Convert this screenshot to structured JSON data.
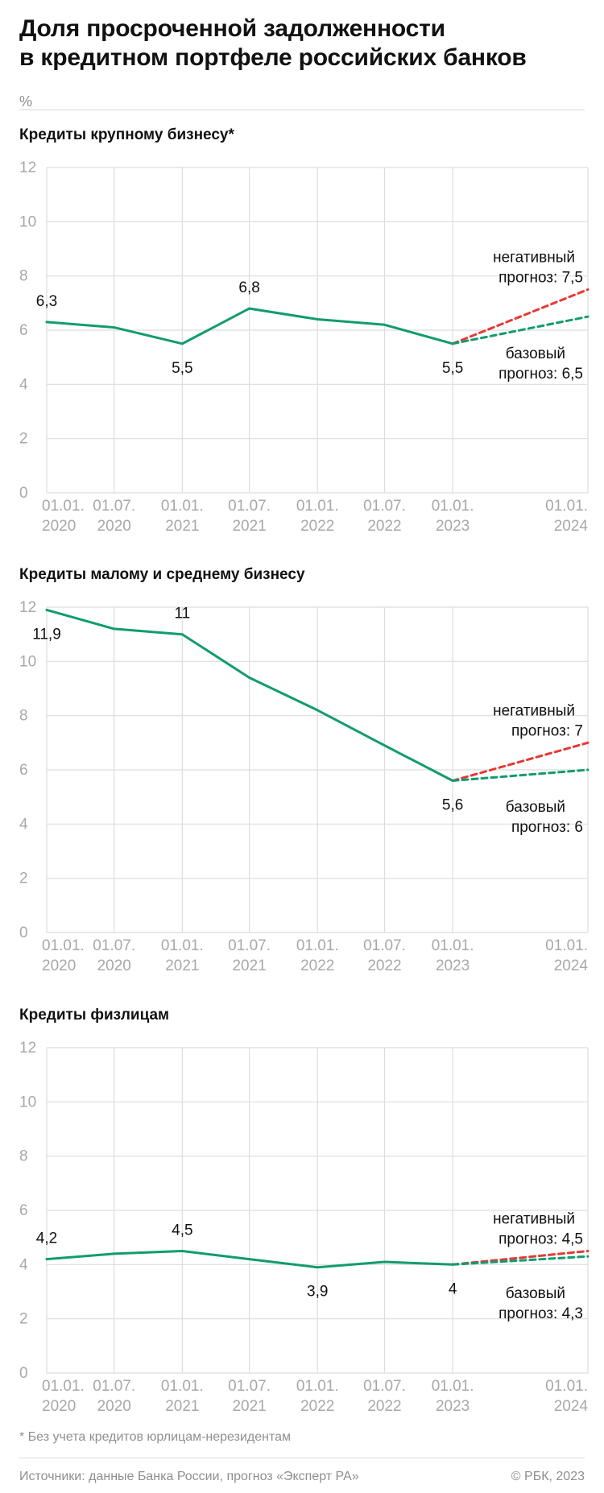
{
  "header": {
    "title_line1": "Доля просроченной задолженности",
    "title_line2": "в кредитном портфеле российских банков",
    "unit": "%"
  },
  "colors": {
    "actual": "#119c6e",
    "baseline": "#119c6e",
    "negative": "#e53935",
    "grid": "#dddddd",
    "axis_text": "#a8a8a8",
    "label": "#111111"
  },
  "chart_data": [
    {
      "type": "line",
      "title": "Кредиты крупному бизнесу*",
      "ylim": [
        0,
        12
      ],
      "yticks": [
        0,
        2,
        4,
        6,
        8,
        10,
        12
      ],
      "x_ticks": [
        {
          "date": "2020-01-01",
          "label_line1": "01.01.",
          "label_line2": "2020"
        },
        {
          "date": "2020-07-01",
          "label_line1": "01.07.",
          "label_line2": "2020"
        },
        {
          "date": "2021-01-01",
          "label_line1": "01.01.",
          "label_line2": "2021"
        },
        {
          "date": "2021-07-01",
          "label_line1": "01.07.",
          "label_line2": "2021"
        },
        {
          "date": "2022-01-01",
          "label_line1": "01.01.",
          "label_line2": "2022"
        },
        {
          "date": "2022-07-01",
          "label_line1": "01.07.",
          "label_line2": "2022"
        },
        {
          "date": "2023-01-01",
          "label_line1": "01.01.",
          "label_line2": "2023"
        },
        {
          "date": "2024-01-01",
          "label_line1": "01.01.",
          "label_line2": "2024"
        }
      ],
      "grid": true,
      "series": [
        {
          "role": "actual",
          "style": "solid",
          "x": [
            "2020-01-01",
            "2020-07-01",
            "2021-01-01",
            "2021-07-01",
            "2022-01-01",
            "2022-07-01",
            "2023-01-01"
          ],
          "values": [
            6.3,
            6.1,
            5.5,
            6.8,
            6.4,
            6.2,
            5.5
          ]
        },
        {
          "role": "negative",
          "style": "dashed",
          "x": [
            "2023-01-01",
            "2024-01-01"
          ],
          "values": [
            5.5,
            7.5
          ]
        },
        {
          "role": "baseline",
          "style": "dashed",
          "x": [
            "2023-01-01",
            "2024-01-01"
          ],
          "values": [
            5.5,
            6.5
          ]
        }
      ],
      "point_labels": [
        {
          "x": "2020-01-01",
          "y": 6.3,
          "text": "6,3",
          "pos": "above"
        },
        {
          "x": "2021-01-01",
          "y": 5.5,
          "text": "5,5",
          "pos": "below"
        },
        {
          "x": "2021-07-01",
          "y": 6.8,
          "text": "6,8",
          "pos": "above"
        },
        {
          "x": "2023-01-01",
          "y": 5.5,
          "text": "5,5",
          "pos": "below"
        }
      ],
      "forecast_labels": {
        "negative": {
          "line1": "негативный",
          "line2": "прогноз: 7,5"
        },
        "baseline": {
          "line1": "базовый",
          "line2": "прогноз: 6,5"
        }
      }
    },
    {
      "type": "line",
      "title": "Кредиты малому и среднему бизнесу",
      "ylim": [
        0,
        12
      ],
      "yticks": [
        0,
        2,
        4,
        6,
        8,
        10,
        12
      ],
      "x_ticks": [
        {
          "date": "2020-01-01",
          "label_line1": "01.01.",
          "label_line2": "2020"
        },
        {
          "date": "2020-07-01",
          "label_line1": "01.07.",
          "label_line2": "2020"
        },
        {
          "date": "2021-01-01",
          "label_line1": "01.01.",
          "label_line2": "2021"
        },
        {
          "date": "2021-07-01",
          "label_line1": "01.07.",
          "label_line2": "2021"
        },
        {
          "date": "2022-01-01",
          "label_line1": "01.01.",
          "label_line2": "2022"
        },
        {
          "date": "2022-07-01",
          "label_line1": "01.07.",
          "label_line2": "2022"
        },
        {
          "date": "2023-01-01",
          "label_line1": "01.01.",
          "label_line2": "2023"
        },
        {
          "date": "2024-01-01",
          "label_line1": "01.01.",
          "label_line2": "2024"
        }
      ],
      "grid": true,
      "series": [
        {
          "role": "actual",
          "style": "solid",
          "x": [
            "2020-01-01",
            "2020-07-01",
            "2021-01-01",
            "2021-07-01",
            "2022-01-01",
            "2022-07-01",
            "2023-01-01"
          ],
          "values": [
            11.9,
            11.2,
            11.0,
            9.4,
            8.2,
            6.9,
            5.6
          ]
        },
        {
          "role": "negative",
          "style": "dashed",
          "x": [
            "2023-01-01",
            "2024-01-01"
          ],
          "values": [
            5.6,
            7.0
          ]
        },
        {
          "role": "baseline",
          "style": "dashed",
          "x": [
            "2023-01-01",
            "2024-01-01"
          ],
          "values": [
            5.6,
            6.0
          ]
        }
      ],
      "point_labels": [
        {
          "x": "2020-01-01",
          "y": 11.9,
          "text": "11,9",
          "pos": "below"
        },
        {
          "x": "2021-01-01",
          "y": 11.0,
          "text": "11",
          "pos": "above"
        },
        {
          "x": "2023-01-01",
          "y": 5.6,
          "text": "5,6",
          "pos": "below"
        }
      ],
      "forecast_labels": {
        "negative": {
          "line1": "негативный",
          "line2": "прогноз: 7"
        },
        "baseline": {
          "line1": "базовый",
          "line2": "прогноз: 6"
        }
      }
    },
    {
      "type": "line",
      "title": "Кредиты физлицам",
      "ylim": [
        0,
        12
      ],
      "yticks": [
        0,
        2,
        4,
        6,
        8,
        10,
        12
      ],
      "x_ticks": [
        {
          "date": "2020-01-01",
          "label_line1": "01.01.",
          "label_line2": "2020"
        },
        {
          "date": "2020-07-01",
          "label_line1": "01.07.",
          "label_line2": "2020"
        },
        {
          "date": "2021-01-01",
          "label_line1": "01.01.",
          "label_line2": "2021"
        },
        {
          "date": "2021-07-01",
          "label_line1": "01.07.",
          "label_line2": "2021"
        },
        {
          "date": "2022-01-01",
          "label_line1": "01.01.",
          "label_line2": "2022"
        },
        {
          "date": "2022-07-01",
          "label_line1": "01.07.",
          "label_line2": "2022"
        },
        {
          "date": "2023-01-01",
          "label_line1": "01.01.",
          "label_line2": "2023"
        },
        {
          "date": "2024-01-01",
          "label_line1": "01.01.",
          "label_line2": "2024"
        }
      ],
      "grid": true,
      "series": [
        {
          "role": "actual",
          "style": "solid",
          "x": [
            "2020-01-01",
            "2020-07-01",
            "2021-01-01",
            "2021-07-01",
            "2022-01-01",
            "2022-07-01",
            "2023-01-01"
          ],
          "values": [
            4.2,
            4.4,
            4.5,
            4.2,
            3.9,
            4.1,
            4.0
          ]
        },
        {
          "role": "negative",
          "style": "dashed",
          "x": [
            "2023-01-01",
            "2024-01-01"
          ],
          "values": [
            4.0,
            4.5
          ]
        },
        {
          "role": "baseline",
          "style": "dashed",
          "x": [
            "2023-01-01",
            "2024-01-01"
          ],
          "values": [
            4.0,
            4.3
          ]
        }
      ],
      "point_labels": [
        {
          "x": "2020-01-01",
          "y": 4.2,
          "text": "4,2",
          "pos": "above"
        },
        {
          "x": "2021-01-01",
          "y": 4.5,
          "text": "4,5",
          "pos": "above"
        },
        {
          "x": "2022-01-01",
          "y": 3.9,
          "text": "3,9",
          "pos": "below"
        },
        {
          "x": "2023-01-01",
          "y": 4.0,
          "text": "4",
          "pos": "below"
        }
      ],
      "forecast_labels": {
        "negative": {
          "line1": "негативный",
          "line2": "прогноз: 4,5"
        },
        "baseline": {
          "line1": "базовый",
          "line2": "прогноз: 4,3"
        }
      }
    }
  ],
  "footer": {
    "footnote": "* Без учета кредитов юрлицам-нерезидентам",
    "sources": "Источники: данные Банка России, прогноз «Эксперт РА»",
    "copyright": "© РБК, 2023"
  }
}
